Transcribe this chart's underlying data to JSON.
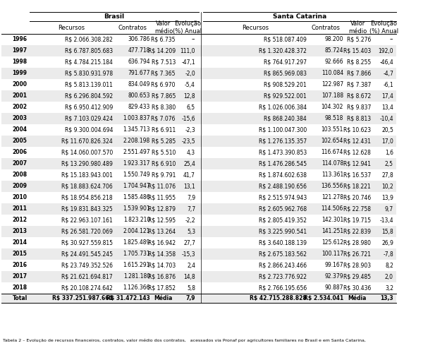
{
  "years": [
    "1996",
    "1997",
    "1998",
    "1999",
    "2000",
    "2001",
    "2002",
    "2003",
    "2004",
    "2005",
    "2006",
    "2007",
    "2008",
    "2009",
    "2010",
    "2011",
    "2012",
    "2013",
    "2014",
    "2015",
    "2016",
    "2017",
    "2018"
  ],
  "brasil_recursos": [
    "R$ 2.066.308.282",
    "R$ 6.787.805.683",
    "R$ 4.784.215.184",
    "R$ 5.830.931.978",
    "R$ 5.813.139.011",
    "R$ 6.296.804.592",
    "R$ 6.950.412.909",
    "R$ 7.103.029.424",
    "R$ 9.300.004.694",
    "R$ 11.670.826.324",
    "R$ 14.060.007.570",
    "R$ 13.290.980.489",
    "R$ 15.183.943.001",
    "R$ 18.883.624.706",
    "R$ 18.954.856.218",
    "R$ 19.831.843.325",
    "R$ 22.963.107.161",
    "R$ 26.581.720.069",
    "R$ 30.927.559.815",
    "R$ 24.491.545.245",
    "R$ 23.749.352.526",
    "R$ 21.621.694.817",
    "R$ 20.108.274.642"
  ],
  "brasil_contratos": [
    "306.786",
    "477.718",
    "636.794",
    "791.677",
    "834.049",
    "800.653",
    "829.433",
    "1.003.837",
    "1.345.713",
    "2.208.198",
    "2.551.497",
    "1.923.317",
    "1.550.749",
    "1.704.947",
    "1.585.486",
    "1.539.901",
    "1.823.210",
    "2.004.121",
    "1.825.489",
    "1.705.731",
    "1.615.291",
    "1.281.180",
    "1.126.366"
  ],
  "brasil_valor": [
    "R$ 6.735",
    "R$ 14.209",
    "R$ 7.513",
    "R$ 7.365",
    "R$ 6.970",
    "R$ 7.865",
    "R$ 8.380",
    "R$ 7.076",
    "R$ 6.911",
    "R$ 5.285",
    "R$ 5.510",
    "R$ 6.910",
    "R$ 9.791",
    "R$ 11.076",
    "R$ 11.955",
    "R$ 12.879",
    "R$ 12.595",
    "R$ 13.264",
    "R$ 16.942",
    "R$ 14.358",
    "R$ 14.703",
    "R$ 16.876",
    "R$ 17.852"
  ],
  "brasil_evolucao": [
    "--",
    "111,0",
    "-47,1",
    "-2,0",
    "-5,4",
    "12,8",
    "6,5",
    "-15,6",
    "-2,3",
    "-23,5",
    "4,3",
    "25,4",
    "41,7",
    "13,1",
    "7,9",
    "7,7",
    "-2,2",
    "5,3",
    "27,7",
    "-15,3",
    "2,4",
    "14,8",
    "5,8"
  ],
  "sc_recursos": [
    "R$ 518.087.409",
    "R$ 1.320.428.372",
    "R$ 764.917.297",
    "R$ 865.969.083",
    "R$ 908.529.201",
    "R$ 929.522.001",
    "R$ 1.026.006.384",
    "R$ 868.240.384",
    "R$ 1.100.047.300",
    "R$ 1.276.135.357",
    "R$ 1.473.390.853",
    "R$ 1.476.286.545",
    "R$ 1.874.602.638",
    "R$ 2.488.190.656",
    "R$ 2.515.974.943",
    "R$ 2.605.962.768",
    "R$ 2.805.419.352",
    "R$ 3.225.990.541",
    "R$ 3.640.188.139",
    "R$ 2.675.183.562",
    "R$ 2.866.243.466",
    "R$ 2.723.776.922",
    "R$ 2.766.195.656"
  ],
  "sc_contratos": [
    "98.200",
    "85.724",
    "92.666",
    "110.084",
    "122.987",
    "107.188",
    "104.302",
    "98.518",
    "103.551",
    "102.654",
    "116.674",
    "114.078",
    "113.361",
    "136.556",
    "121.278",
    "114.506",
    "142.301",
    "141.251",
    "125.612",
    "100.117",
    "99.167",
    "92.379",
    "90.887"
  ],
  "sc_valor": [
    "R$ 5.276",
    "R$ 15.403",
    "R$ 8.255",
    "R$ 7.866",
    "R$ 7.387",
    "R$ 8.672",
    "R$ 9.837",
    "R$ 8.813",
    "R$ 10.623",
    "R$ 12.431",
    "R$ 12.628",
    "R$ 12.941",
    "R$ 16.537",
    "R$ 18.221",
    "R$ 20.746",
    "R$ 22.758",
    "R$ 19.715",
    "R$ 22.839",
    "R$ 28.980",
    "R$ 26.721",
    "R$ 28.903",
    "R$ 29.485",
    "R$ 30.436"
  ],
  "sc_evolucao": [
    "--",
    "192,0",
    "-46,4",
    "-4,7",
    "-6,1",
    "17,4",
    "13,4",
    "-10,4",
    "20,5",
    "17,0",
    "1,6",
    "2,5",
    "27,8",
    "10,2",
    "13,9",
    "9,7",
    "-13,4",
    "15,8",
    "26,9",
    "-7,8",
    "8,2",
    "2,0",
    "3,2"
  ],
  "total_brasil_recursos": "R$ 337.251.987.664",
  "total_brasil_contratos": "R$ 31.472.143",
  "total_brasil_media": "7,9",
  "total_sc_recursos": "R$ 42.715.288.828",
  "total_sc_contratos": "R$ 2.534.041",
  "total_sc_media": "13,3",
  "font_size": 5.5,
  "header_font_size": 6.0,
  "group_font_size": 6.5
}
